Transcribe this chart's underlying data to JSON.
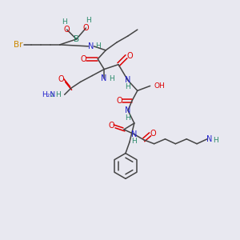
{
  "bg": "#e8e8f0",
  "bond_color": "#444444",
  "colors": {
    "Br": "#cc8800",
    "B": "#2a8a6a",
    "O": "#dd0000",
    "N": "#2222cc",
    "H": "#2a8a6a",
    "C": "#444444"
  }
}
